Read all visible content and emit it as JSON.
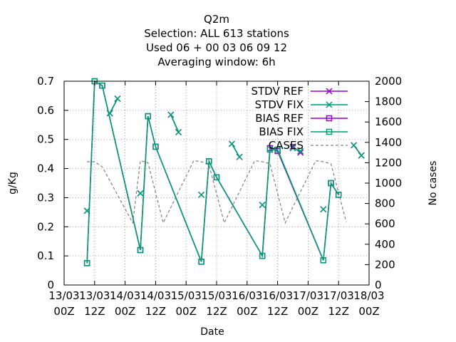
{
  "chart_data": {
    "type": "line",
    "title_lines": [
      "Q2m",
      "Selection: ALL     613 stations",
      "Used  06 + 00 03 06 09 12",
      "Averaging window:  6h"
    ],
    "xlabel": "Date",
    "ylabel": "g/Kg",
    "y2label": "No cases",
    "ylim": [
      0,
      0.7
    ],
    "y2lim": [
      0,
      2000
    ],
    "yticks": [
      "0",
      "0.1",
      "0.2",
      "0.3",
      "0.4",
      "0.5",
      "0.6",
      "0.7"
    ],
    "y2ticks": [
      "0",
      "200",
      "400",
      "600",
      "800",
      "1000",
      "1200",
      "1400",
      "1600",
      "1800",
      "2000"
    ],
    "xlim": [
      0,
      120
    ],
    "xticks": [
      {
        "x": 0,
        "line1": "13/03",
        "line2": "00Z"
      },
      {
        "x": 12,
        "line1": "13/03",
        "line2": "12Z"
      },
      {
        "x": 24,
        "line1": "14/03",
        "line2": "00Z"
      },
      {
        "x": 36,
        "line1": "14/03",
        "line2": "12Z"
      },
      {
        "x": 48,
        "line1": "15/03",
        "line2": "00Z"
      },
      {
        "x": 60,
        "line1": "15/03",
        "line2": "12Z"
      },
      {
        "x": 72,
        "line1": "16/03",
        "line2": "00Z"
      },
      {
        "x": 84,
        "line1": "16/03",
        "line2": "12Z"
      },
      {
        "x": 96,
        "line1": "17/03",
        "line2": "00Z"
      },
      {
        "x": 108,
        "line1": "17/03",
        "line2": "12Z"
      },
      {
        "x": 120,
        "line1": "18/03",
        "line2": "00Z"
      }
    ],
    "grid": true,
    "legend_position": "top-right",
    "series": [
      {
        "name": "STDV REF",
        "color": "#9400d3",
        "marker": "x",
        "axis": "y1",
        "x": [
          6,
          9,
          12,
          15,
          18,
          21,
          27,
          30,
          33,
          39,
          42,
          45,
          51,
          54,
          57,
          63,
          66,
          69,
          75,
          78,
          81,
          87,
          90,
          93,
          99,
          102,
          105,
          111,
          114,
          117
        ],
        "y": [
          null,
          0.255,
          null,
          null,
          0.59,
          0.64,
          null,
          0.315,
          null,
          null,
          0.585,
          0.525,
          null,
          0.31,
          null,
          null,
          0.485,
          0.44,
          null,
          0.275,
          null,
          null,
          0.475,
          0.455,
          null,
          0.26,
          null,
          null,
          0.48,
          0.445
        ]
      },
      {
        "name": "STDV FIX",
        "color": "#009e73",
        "marker": "x",
        "axis": "y1",
        "x": [
          6,
          9,
          12,
          15,
          18,
          21,
          27,
          30,
          33,
          39,
          42,
          45,
          51,
          54,
          57,
          63,
          66,
          69,
          75,
          78,
          81,
          87,
          90,
          93,
          99,
          102,
          105,
          111,
          114,
          117
        ],
        "y": [
          null,
          0.255,
          null,
          null,
          0.59,
          0.64,
          null,
          0.315,
          null,
          null,
          0.585,
          0.525,
          null,
          0.31,
          null,
          null,
          0.485,
          0.44,
          null,
          0.275,
          null,
          null,
          0.47,
          0.46,
          null,
          0.26,
          null,
          null,
          0.48,
          0.445
        ]
      },
      {
        "name": "BIAS REF",
        "color": "#9400d3",
        "marker": "square",
        "axis": "y1",
        "x": [
          9,
          12,
          15,
          30,
          33,
          36,
          54,
          57,
          60,
          78,
          81,
          84,
          102,
          105,
          108
        ],
        "y": [
          0.075,
          0.7,
          0.685,
          0.12,
          0.58,
          0.475,
          0.08,
          0.425,
          0.37,
          0.1,
          0.47,
          0.46,
          0.085,
          0.35,
          0.31
        ]
      },
      {
        "name": "BIAS FIX",
        "color": "#009e73",
        "marker": "square",
        "axis": "y1",
        "x": [
          9,
          12,
          15,
          30,
          33,
          36,
          54,
          57,
          60,
          78,
          81,
          84,
          102,
          105,
          108
        ],
        "y": [
          0.075,
          0.7,
          0.685,
          0.12,
          0.58,
          0.475,
          0.08,
          0.425,
          0.37,
          0.1,
          0.465,
          0.465,
          0.085,
          0.35,
          0.31
        ]
      },
      {
        "name": "CASES",
        "color": "#808080",
        "marker": "none",
        "dashed": true,
        "axis": "y2",
        "x": [
          9,
          12,
          15,
          27,
          30,
          33,
          39,
          51,
          54,
          57,
          63,
          75,
          78,
          81,
          87,
          99,
          102,
          105,
          111
        ],
        "y": [
          1210,
          1210,
          1160,
          610,
          1220,
          1200,
          610,
          1220,
          1210,
          1180,
          610,
          1220,
          1210,
          1190,
          610,
          1220,
          1210,
          1190,
          620
        ]
      }
    ]
  }
}
